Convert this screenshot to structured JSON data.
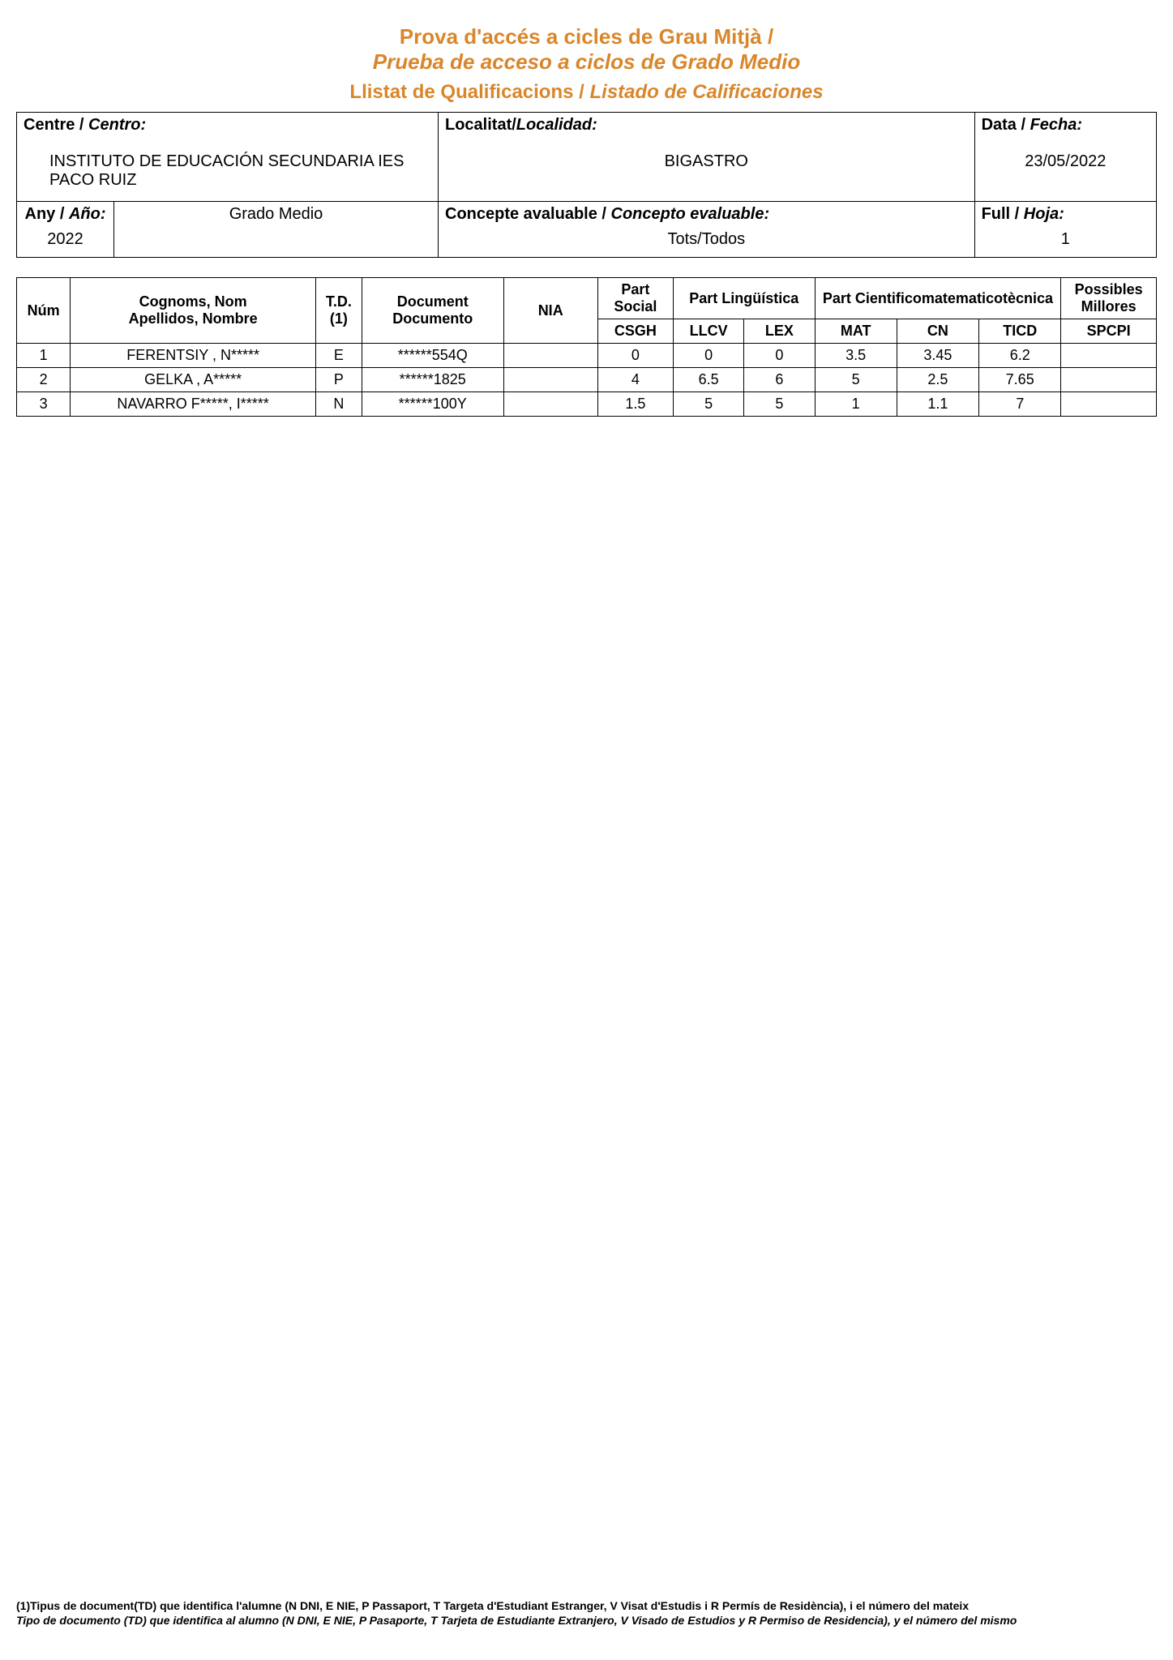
{
  "header": {
    "title_ca": "Prova d'accés a cicles de Grau Mitjà /",
    "title_es": "Prueba de acceso a ciclos de Grado Medio",
    "subtitle_ca": "Llistat de Qualificacions / ",
    "subtitle_es": "Listado de Calificaciones"
  },
  "info": {
    "centre_label_ca": "Centre / ",
    "centre_label_es": "Centro:",
    "centre_value": "INSTITUTO DE EDUCACIÓN SECUNDARIA IES PACO RUIZ",
    "localitat_label_ca": "Localitat/",
    "localitat_label_es": "Localidad:",
    "localitat_value": "BIGASTRO",
    "data_label_ca": "Data / ",
    "data_label_es": "Fecha:",
    "data_value": "23/05/2022",
    "any_label_ca": "Any / ",
    "any_label_es": "Año:",
    "any_value": "2022",
    "grado_value": "Grado Medio",
    "concepte_label_ca": "Concepte avaluable / ",
    "concepte_label_es": "Concepto evaluable:",
    "concepte_value": "Tots/Todos",
    "full_label_ca": "Full / ",
    "full_label_es": "Hoja:",
    "full_value": "1"
  },
  "columns": {
    "num": "Núm",
    "cognoms_ca": "Cognoms, Nom",
    "cognoms_es": "Apellidos, Nombre",
    "td_1": "T.D.",
    "td_2": "(1)",
    "document_ca": "Document",
    "document_es": "Documento",
    "nia": "NIA",
    "part_social": "Part Social",
    "part_ling": "Part Lingüística",
    "part_cient": "Part Cientificomatematicotècnica",
    "possibles": "Possibles Millores",
    "csgh": "CSGH",
    "llcv": "LLCV",
    "lex": "LEX",
    "mat": "MAT",
    "cn": "CN",
    "ticd": "TICD",
    "spcpi": "SPCPI"
  },
  "rows": [
    {
      "num": "1",
      "name": "FERENTSIY , N*****",
      "td": "E",
      "doc": "******554Q",
      "nia": "",
      "csgh": "0",
      "llcv": "0",
      "lex": "0",
      "mat": "3.5",
      "cn": "3.45",
      "ticd": "6.2",
      "spcpi": ""
    },
    {
      "num": "2",
      "name": "GELKA , A*****",
      "td": "P",
      "doc": "******1825",
      "nia": "",
      "csgh": "4",
      "llcv": "6.5",
      "lex": "6",
      "mat": "5",
      "cn": "2.5",
      "ticd": "7.65",
      "spcpi": ""
    },
    {
      "num": "3",
      "name": "NAVARRO F*****, I*****",
      "td": "N",
      "doc": "******100Y",
      "nia": "",
      "csgh": "1.5",
      "llcv": "5",
      "lex": "5",
      "mat": "1",
      "cn": "1.1",
      "ticd": "7",
      "spcpi": ""
    }
  ],
  "footnote": {
    "line1": "(1)Tipus de document(TD) que identifica l'alumne (N DNI, E NIE, P Passaport, T Targeta d'Estudiant Estranger, V Visat d'Estudis i R Permís de Residència), i el número del mateix",
    "line2": "Tipo de documento (TD) que identifica al alumno (N DNI, E NIE, P Pasaporte, T Tarjeta de Estudiante Extranjero, V Visado de Estudios y R Permiso de Residencia), y el número del mismo"
  }
}
